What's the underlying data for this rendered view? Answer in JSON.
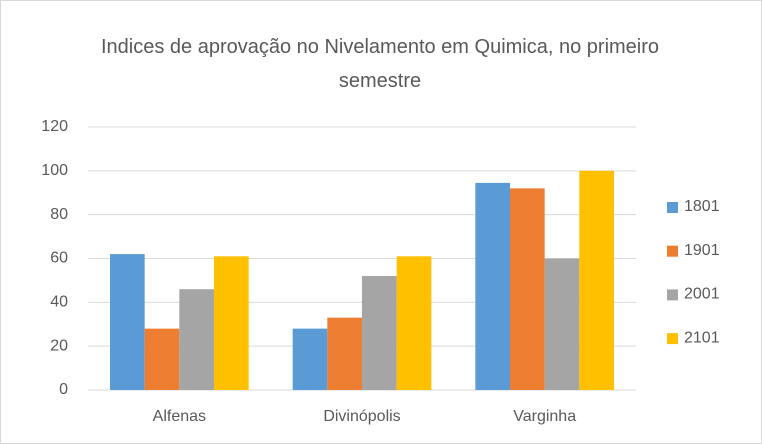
{
  "chart_data": {
    "type": "bar",
    "title": "Indices de aprovação no Nivelamento em Quimica, no primeiro semestre",
    "categories": [
      "Alfenas",
      "Divinópolis",
      "Varginha"
    ],
    "series": [
      {
        "name": "1801",
        "color": "#5b9bd5",
        "values": [
          62,
          28,
          94.5
        ]
      },
      {
        "name": "1901",
        "color": "#ed7d31",
        "values": [
          28,
          33,
          92
        ]
      },
      {
        "name": "2001",
        "color": "#a5a5a5",
        "values": [
          46,
          52,
          60
        ]
      },
      {
        "name": "2101",
        "color": "#ffc000",
        "values": [
          61,
          61,
          100
        ]
      }
    ],
    "ylim": [
      0,
      120
    ],
    "yticks": [
      0,
      20,
      40,
      60,
      80,
      100,
      120
    ],
    "grid": true,
    "legend": "right"
  }
}
